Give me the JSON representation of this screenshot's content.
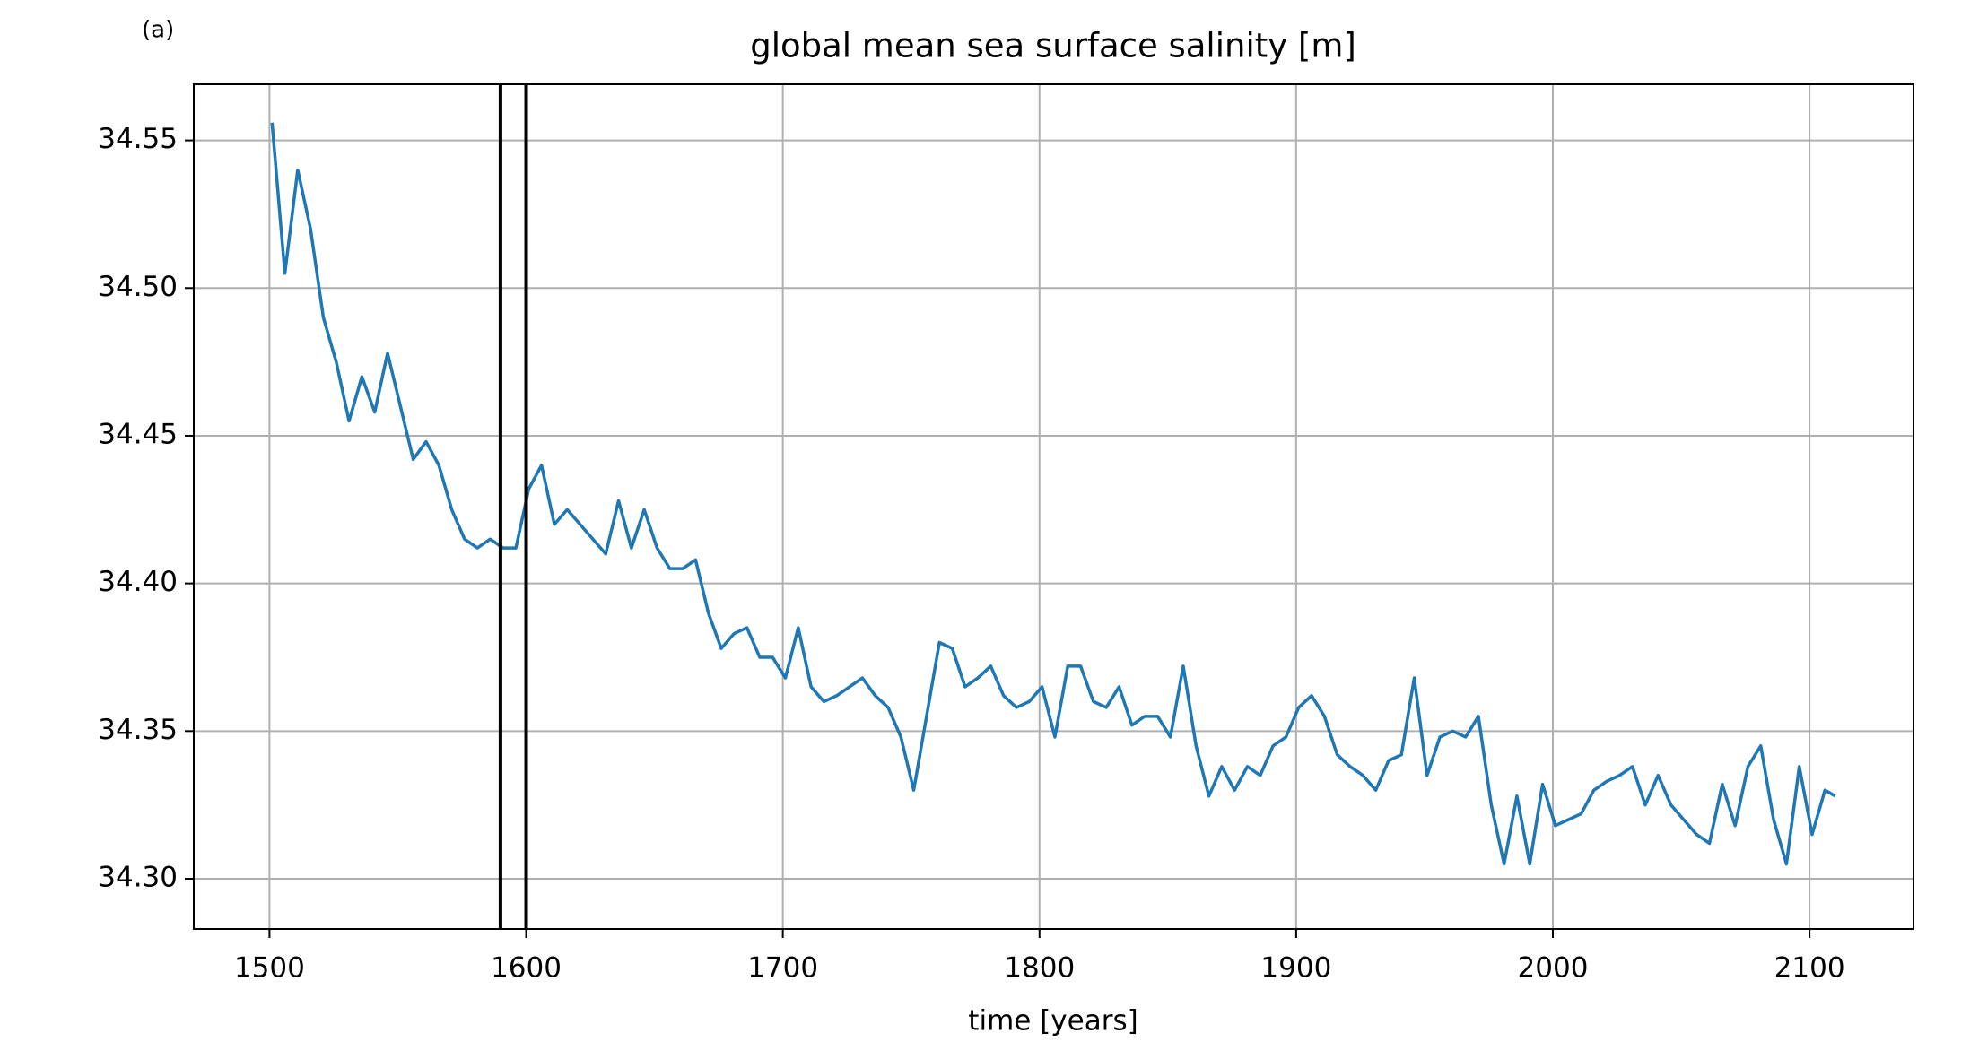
{
  "chart_data": {
    "type": "line",
    "label": "(a)",
    "title": "global mean sea surface salinity [m]",
    "xlabel": "time [years]",
    "color": "#1f77b4",
    "x": [
      1501,
      1506,
      1511,
      1516,
      1521,
      1526,
      1531,
      1536,
      1541,
      1546,
      1551,
      1556,
      1561,
      1566,
      1571,
      1576,
      1581,
      1586,
      1591,
      1596,
      1601,
      1606,
      1611,
      1616,
      1621,
      1626,
      1631,
      1636,
      1641,
      1646,
      1651,
      1656,
      1661,
      1666,
      1671,
      1676,
      1681,
      1686,
      1691,
      1696,
      1701,
      1706,
      1711,
      1716,
      1721,
      1726,
      1731,
      1736,
      1741,
      1746,
      1751,
      1756,
      1761,
      1766,
      1771,
      1776,
      1781,
      1786,
      1791,
      1796,
      1801,
      1806,
      1811,
      1816,
      1821,
      1826,
      1831,
      1836,
      1841,
      1846,
      1851,
      1856,
      1861,
      1866,
      1871,
      1876,
      1881,
      1886,
      1891,
      1896,
      1901,
      1906,
      1911,
      1916,
      1921,
      1926,
      1931,
      1936,
      1941,
      1946,
      1951,
      1956,
      1961,
      1966,
      1971,
      1976,
      1981,
      1986,
      1991,
      1996,
      2001,
      2006,
      2011,
      2016,
      2021,
      2026,
      2031,
      2036,
      2041,
      2046,
      2051,
      2056,
      2061,
      2066,
      2071,
      2076,
      2081,
      2086,
      2091,
      2096,
      2101,
      2106,
      2110
    ],
    "values": [
      34.556,
      34.505,
      34.54,
      34.52,
      34.49,
      34.475,
      34.455,
      34.47,
      34.458,
      34.478,
      34.46,
      34.442,
      34.448,
      34.44,
      34.425,
      34.415,
      34.412,
      34.415,
      34.412,
      34.412,
      34.432,
      34.44,
      34.42,
      34.425,
      34.42,
      34.415,
      34.41,
      34.428,
      34.412,
      34.425,
      34.412,
      34.405,
      34.405,
      34.408,
      34.39,
      34.378,
      34.383,
      34.385,
      34.375,
      34.375,
      34.368,
      34.385,
      34.365,
      34.36,
      34.362,
      34.365,
      34.368,
      34.362,
      34.358,
      34.348,
      34.33,
      34.355,
      34.38,
      34.378,
      34.365,
      34.368,
      34.372,
      34.362,
      34.358,
      34.36,
      34.365,
      34.348,
      34.372,
      34.372,
      34.36,
      34.358,
      34.365,
      34.352,
      34.355,
      34.355,
      34.348,
      34.372,
      34.345,
      34.328,
      34.338,
      34.33,
      34.338,
      34.335,
      34.345,
      34.348,
      34.358,
      34.362,
      34.355,
      34.342,
      34.338,
      34.335,
      34.33,
      34.34,
      34.342,
      34.368,
      34.335,
      34.348,
      34.35,
      34.348,
      34.355,
      34.325,
      34.305,
      34.328,
      34.305,
      34.332,
      34.318,
      34.32,
      34.322,
      34.33,
      34.333,
      34.335,
      34.338,
      34.325,
      34.335,
      34.325,
      34.32,
      34.315,
      34.312,
      34.332,
      34.318,
      34.338,
      34.345,
      34.32,
      34.305,
      34.338,
      34.315,
      34.33,
      34.328
    ],
    "vlines": [
      1590,
      1600
    ],
    "vline_color": "#000000",
    "xlim": [
      1470.5,
      2140.5
    ],
    "ylim": [
      34.283,
      34.569
    ],
    "xticks": [
      1500,
      1600,
      1700,
      1800,
      1900,
      2000,
      2100
    ],
    "yticks": [
      {
        "value": 34.3,
        "label": "34.30"
      },
      34.35,
      {
        "value": 34.4,
        "label": "34.40"
      },
      34.45,
      {
        "value": 34.5,
        "label": "34.50"
      },
      34.55
    ],
    "grid": true
  }
}
